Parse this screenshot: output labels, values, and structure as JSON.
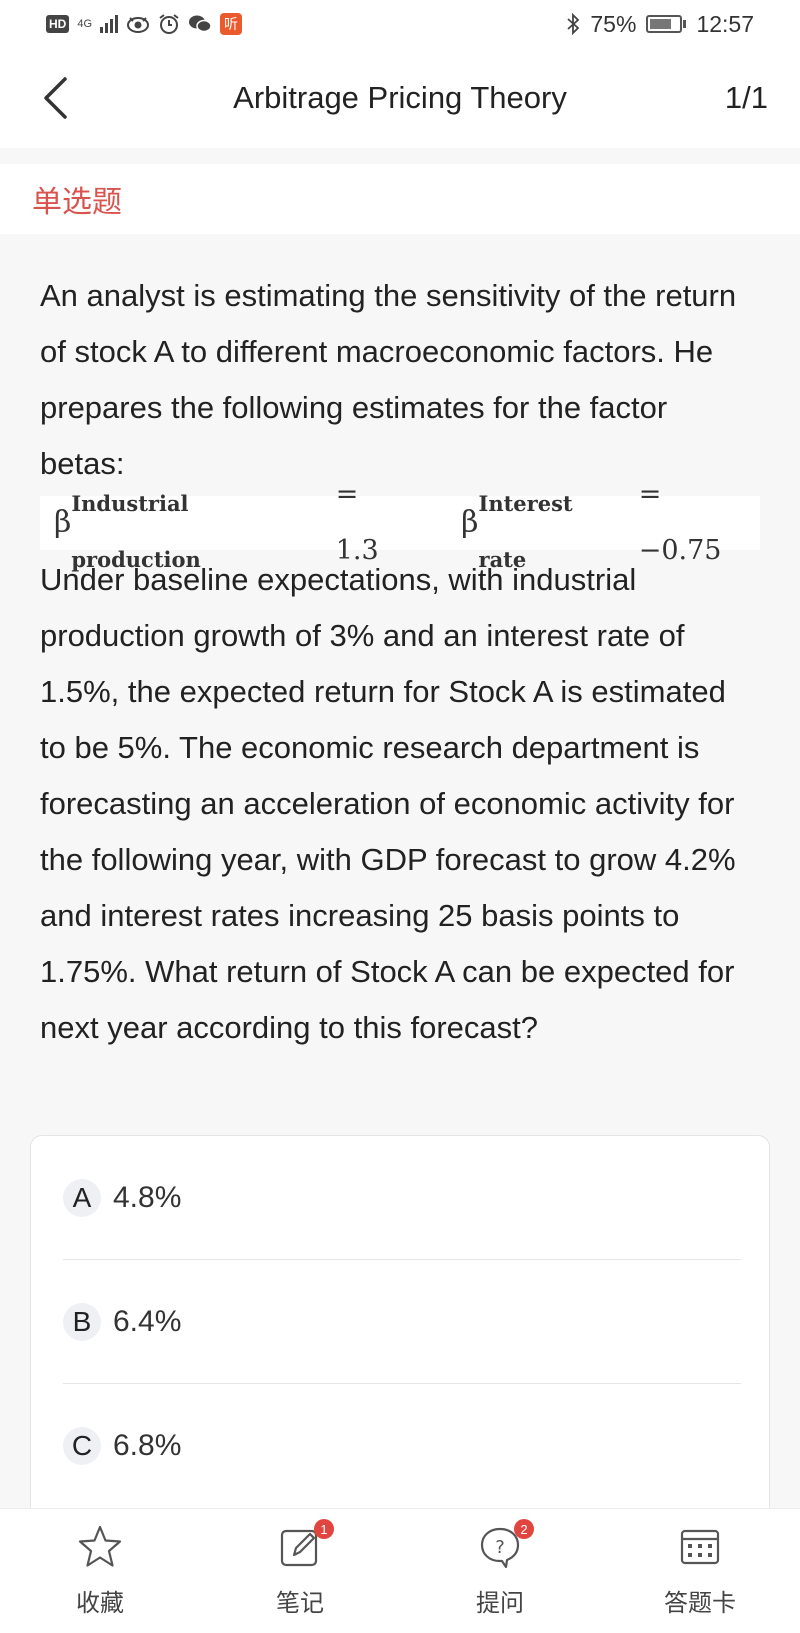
{
  "status_bar": {
    "hd": "HD",
    "network": "4G",
    "app_badge": "听",
    "battery": "75%",
    "battery_level": 0.75,
    "time": "12:57"
  },
  "header": {
    "title": "Arbitrage Pricing Theory",
    "counter": "1/1"
  },
  "question_type": "单选题",
  "question": {
    "paragraph1": "An analyst is estimating the sensitivity of the return of stock A to different macroeconomic factors. He prepares the following estimates for the factor betas:",
    "formula": {
      "beta1_symbol": "β",
      "beta1_sub": "Industrial production",
      "beta1_value": "= 1.3",
      "beta2_symbol": "β",
      "beta2_sub": "Interest rate",
      "beta2_value": "= −0.75"
    },
    "paragraph2": "Under baseline expectations, with industrial production growth of 3% and an interest rate of 1.5%, the expected return for Stock A is estimated to be 5%. The economic research department is forecasting an acceleration of economic activity for the following year, with GDP forecast to grow 4.2% and interest rates increasing 25 basis points to 1.75%. What return of Stock A can be expected for next year according to this forecast?"
  },
  "options": [
    {
      "letter": "A",
      "text": "4.8%"
    },
    {
      "letter": "B",
      "text": "6.4%"
    },
    {
      "letter": "C",
      "text": "6.8%"
    }
  ],
  "bottom_bar": {
    "favorite": {
      "label": "收藏",
      "icon": "star-icon"
    },
    "notes": {
      "label": "笔记",
      "icon": "note-edit-icon",
      "badge": "1"
    },
    "ask": {
      "label": "提问",
      "icon": "question-bubble-icon",
      "badge": "2"
    },
    "answer_card": {
      "label": "答题卡",
      "icon": "answer-card-icon"
    }
  },
  "colors": {
    "accent_red": "#d9534f",
    "badge_red": "#e0463f"
  }
}
